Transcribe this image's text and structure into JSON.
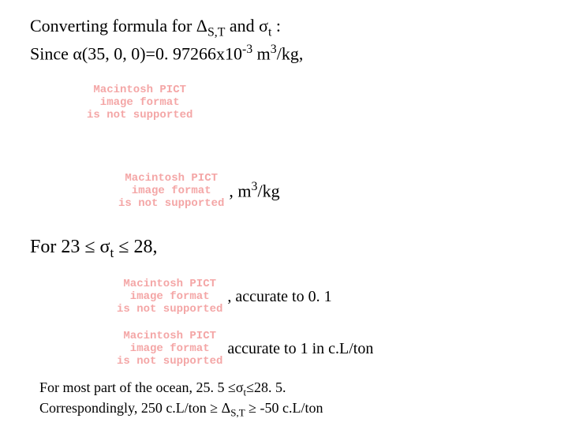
{
  "colors": {
    "text": "#000000",
    "pict": "#f4a6a6",
    "background": "#ffffff"
  },
  "fonts": {
    "body_family": "Times New Roman",
    "pict_family": "Courier New",
    "body_size_pt": 22,
    "for_line_size_pt": 24,
    "footer_size_pt": 18,
    "pict_size_pt": 14
  },
  "header": {
    "line1_pre": "Converting formula for ",
    "line1_delta": "Δ",
    "line1_sub1": "S,T",
    "line1_mid": " and σ",
    "line1_sub2": "t",
    "line1_post": " :",
    "line2_pre": "Since α(35, 0, 0)=0. 97266x10",
    "line2_sup": "-3",
    "line2_mid": " m",
    "line2_sup2": "3",
    "line2_post": "/kg,"
  },
  "pict": {
    "l1": "Macintosh PICT",
    "l2": "image format",
    "l3": "is not supported"
  },
  "annot1_pre": ", m",
  "annot1_sup": "3",
  "annot1_post": "/kg",
  "for_line_pre": "For 23 ≤ σ",
  "for_line_sub": "t",
  "for_line_post": " ≤ 28,",
  "annot2": ", accurate to 0. 1",
  "annot3": "accurate to 1 in c.L/ton",
  "footer": {
    "l1_pre": "For most part of the ocean, 25. 5 ≤σ",
    "l1_sub": "t",
    "l1_post": "≤28. 5.",
    "l2_pre": "Correspondingly, 250 c.L/ton ≥ Δ",
    "l2_sub": "S,T",
    "l2_post": " ≥ -50 c.L/ton"
  }
}
